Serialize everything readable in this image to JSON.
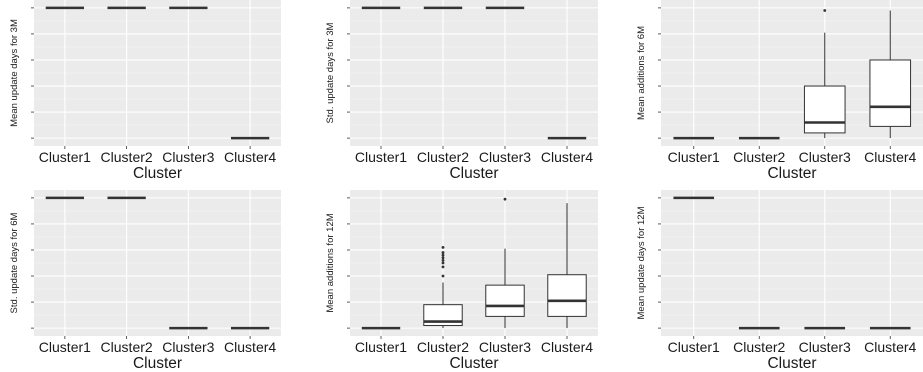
{
  "chart_data": [
    {
      "type": "boxplot",
      "title": "",
      "xlabel": "Cluster",
      "ylabel": "Mean update days for 3M",
      "categories": [
        "Cluster1",
        "Cluster2",
        "Cluster3",
        "Cluster4"
      ],
      "ylim": [
        0,
        1.05
      ],
      "grid": true,
      "boxes": [
        {
          "min": 1,
          "q1": 1,
          "median": 1,
          "q3": 1,
          "max": 1,
          "outliers": []
        },
        {
          "min": 1,
          "q1": 1,
          "median": 1,
          "q3": 1,
          "max": 1,
          "outliers": []
        },
        {
          "min": 1,
          "q1": 1,
          "median": 1,
          "q3": 1,
          "max": 1,
          "outliers": []
        },
        {
          "min": 0,
          "q1": 0,
          "median": 0,
          "q3": 0,
          "max": 0,
          "outliers": []
        }
      ]
    },
    {
      "type": "boxplot",
      "title": "",
      "xlabel": "Cluster",
      "ylabel": "Std. update days for 3M",
      "categories": [
        "Cluster1",
        "Cluster2",
        "Cluster3",
        "Cluster4"
      ],
      "ylim": [
        0,
        1.05
      ],
      "grid": true,
      "boxes": [
        {
          "min": 1,
          "q1": 1,
          "median": 1,
          "q3": 1,
          "max": 1,
          "outliers": []
        },
        {
          "min": 1,
          "q1": 1,
          "median": 1,
          "q3": 1,
          "max": 1,
          "outliers": []
        },
        {
          "min": 1,
          "q1": 1,
          "median": 1,
          "q3": 1,
          "max": 1,
          "outliers": []
        },
        {
          "min": 0,
          "q1": 0,
          "median": 0,
          "q3": 0,
          "max": 0,
          "outliers": []
        }
      ]
    },
    {
      "type": "boxplot",
      "title": "",
      "xlabel": "Cluster",
      "ylabel": "Mean additions for 6M",
      "categories": [
        "Cluster1",
        "Cluster2",
        "Cluster3",
        "Cluster4"
      ],
      "ylim": [
        0,
        1.05
      ],
      "grid": true,
      "boxes": [
        {
          "min": 0,
          "q1": 0,
          "median": 0,
          "q3": 0,
          "max": 0,
          "outliers": []
        },
        {
          "min": 0,
          "q1": 0,
          "median": 0,
          "q3": 0,
          "max": 0,
          "outliers": []
        },
        {
          "min": 0,
          "q1": 0.04,
          "median": 0.12,
          "q3": 0.4,
          "max": 0.81,
          "outliers": [
            0.98
          ]
        },
        {
          "min": 0,
          "q1": 0.09,
          "median": 0.24,
          "q3": 0.6,
          "max": 0.98,
          "outliers": []
        }
      ]
    },
    {
      "type": "boxplot",
      "title": "",
      "xlabel": "Cluster",
      "ylabel": "Std. update days for 6M",
      "categories": [
        "Cluster1",
        "Cluster2",
        "Cluster3",
        "Cluster4"
      ],
      "ylim": [
        0,
        1.05
      ],
      "grid": true,
      "boxes": [
        {
          "min": 1,
          "q1": 1,
          "median": 1,
          "q3": 1,
          "max": 1,
          "outliers": []
        },
        {
          "min": 1,
          "q1": 1,
          "median": 1,
          "q3": 1,
          "max": 1,
          "outliers": []
        },
        {
          "min": 0,
          "q1": 0,
          "median": 0,
          "q3": 0,
          "max": 0,
          "outliers": []
        },
        {
          "min": 0,
          "q1": 0,
          "median": 0,
          "q3": 0,
          "max": 0,
          "outliers": []
        }
      ]
    },
    {
      "type": "boxplot",
      "title": "",
      "xlabel": "Cluster",
      "ylabel": "Mean additions for 12M",
      "categories": [
        "Cluster1",
        "Cluster2",
        "Cluster3",
        "Cluster4"
      ],
      "ylim": [
        0,
        1.05
      ],
      "grid": true,
      "boxes": [
        {
          "min": 0,
          "q1": 0,
          "median": 0,
          "q3": 0,
          "max": 0,
          "outliers": []
        },
        {
          "min": 0,
          "q1": 0.02,
          "median": 0.05,
          "q3": 0.18,
          "max": 0.35,
          "outliers": [
            0.4,
            0.47,
            0.5,
            0.52,
            0.54,
            0.56,
            0.58,
            0.62
          ]
        },
        {
          "min": 0,
          "q1": 0.09,
          "median": 0.17,
          "q3": 0.33,
          "max": 0.61,
          "outliers": [
            0.99
          ]
        },
        {
          "min": 0,
          "q1": 0.09,
          "median": 0.21,
          "q3": 0.41,
          "max": 0.96,
          "outliers": []
        }
      ]
    },
    {
      "type": "boxplot",
      "title": "",
      "xlabel": "Cluster",
      "ylabel": "Mean update days for 12M",
      "categories": [
        "Cluster1",
        "Cluster2",
        "Cluster3",
        "Cluster4"
      ],
      "ylim": [
        0,
        1.05
      ],
      "grid": true,
      "boxes": [
        {
          "min": 1,
          "q1": 1,
          "median": 1,
          "q3": 1,
          "max": 1,
          "outliers": []
        },
        {
          "min": 0,
          "q1": 0,
          "median": 0,
          "q3": 0,
          "max": 0,
          "outliers": []
        },
        {
          "min": 0,
          "q1": 0,
          "median": 0,
          "q3": 0,
          "max": 0,
          "outliers": []
        },
        {
          "min": 0,
          "q1": 0,
          "median": 0,
          "q3": 0,
          "max": 0,
          "outliers": []
        }
      ]
    }
  ],
  "colors": {
    "panel_background": "#ebebeb",
    "grid_major": "#ffffff",
    "grid_minor": "#f5f5f5",
    "box_fill": "#ffffff",
    "box_line": "#333333",
    "text": "#1a1a1a"
  }
}
